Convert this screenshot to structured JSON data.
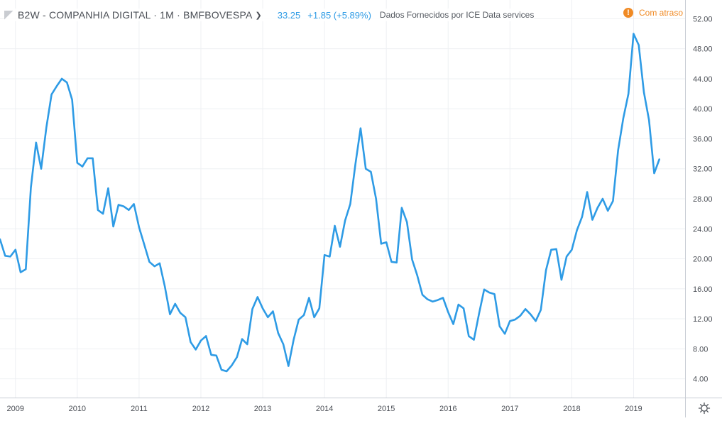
{
  "header": {
    "symbol_title": "B2W - COMPANHIA DIGITAL · 1M · BMFBOVESPA",
    "last_value": "33.25",
    "change": "+1.85 (+5.89%)",
    "provider": "Dados Fornecidos por ICE Data services",
    "delay_badge": "!",
    "delay_label": "Com atraso"
  },
  "colors": {
    "line": "#2e9be5",
    "grid": "#eef0f3",
    "axis_text": "#4a4e55",
    "delay": "#f08a24"
  },
  "icons": {
    "settings": "gear-icon"
  },
  "chart_data": {
    "type": "line",
    "title": "",
    "xlabel": "",
    "ylabel": "",
    "x_ticks": [
      "2009",
      "2010",
      "2011",
      "2012",
      "2013",
      "2014",
      "2015",
      "2016",
      "2017",
      "2018",
      "2019"
    ],
    "y_ticks": [
      "4.00",
      "8.00",
      "12.00",
      "16.00",
      "20.00",
      "24.00",
      "28.00",
      "32.00",
      "36.00",
      "40.00",
      "44.00",
      "48.00",
      "52.00"
    ],
    "ylim": [
      1.5,
      54.5
    ],
    "xlim": [
      "2008-10",
      "2019-11"
    ],
    "grid": true,
    "series": [
      {
        "name": "",
        "start": "2008-10",
        "interval": "1M",
        "values": [
          22.6,
          20.4,
          20.3,
          21.2,
          18.2,
          18.6,
          29.5,
          35.5,
          32.0,
          37.5,
          41.9,
          43.0,
          44.0,
          43.5,
          41.2,
          32.8,
          32.3,
          33.4,
          33.4,
          26.5,
          26.0,
          29.4,
          24.3,
          27.2,
          27.0,
          26.5,
          27.3,
          24.2,
          21.9,
          19.6,
          19.0,
          19.4,
          16.3,
          12.6,
          14.0,
          12.8,
          12.2,
          8.9,
          7.9,
          9.1,
          9.7,
          7.2,
          7.1,
          5.2,
          5.0,
          5.8,
          6.9,
          9.3,
          8.6,
          13.3,
          14.9,
          13.4,
          12.2,
          13.0,
          10.1,
          8.6,
          5.7,
          9.2,
          11.9,
          12.5,
          14.8,
          12.2,
          13.4,
          20.5,
          20.3,
          24.4,
          21.6,
          25.1,
          27.3,
          32.6,
          37.4,
          32.0,
          31.6,
          28.0,
          22.0,
          22.2,
          19.6,
          19.5,
          26.8,
          24.9,
          19.9,
          17.8,
          15.2,
          14.6,
          14.3,
          14.5,
          14.8,
          12.9,
          11.3,
          13.9,
          13.4,
          9.7,
          9.2,
          12.7,
          15.9,
          15.5,
          15.3,
          11.0,
          10.0,
          11.7,
          11.9,
          12.4,
          13.3,
          12.6,
          11.7,
          13.2,
          18.5,
          21.2,
          21.3,
          17.2,
          20.3,
          21.2,
          23.8,
          25.6,
          28.9,
          25.2,
          26.8,
          28.0,
          26.4,
          27.7,
          34.5,
          38.7,
          42.0,
          50.0,
          48.5,
          42.2,
          38.5,
          31.4,
          33.25
        ]
      }
    ]
  }
}
